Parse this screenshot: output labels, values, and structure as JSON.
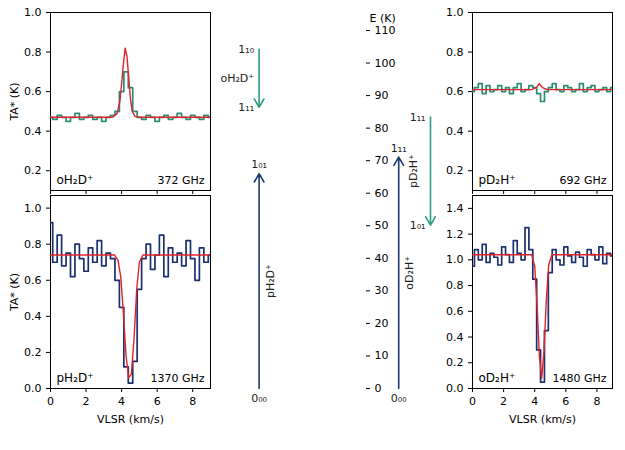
{
  "chart_data": [
    {
      "type": "line",
      "title": "oH₂D⁺",
      "subtitle": "372 GHz",
      "ylabel": "TA* (K)",
      "xlim": [
        0,
        9
      ],
      "xticks": [
        0,
        2,
        4,
        6,
        8
      ],
      "ylim": [
        0.1,
        1.0
      ],
      "yticks": [
        0.2,
        0.4,
        0.6,
        0.8,
        {
          "value": 1,
          "label": "1.0"
        }
      ],
      "tick_labels": "y",
      "series": [
        {
          "color": "#2a8c74",
          "line_style": "step",
          "x": [
            0,
            0.25,
            0.5,
            0.75,
            1,
            1.25,
            1.5,
            1.75,
            2,
            2.25,
            2.5,
            2.75,
            3,
            3.25,
            3.5,
            3.75,
            4,
            4.25,
            4.5,
            4.75,
            5,
            5.25,
            5.5,
            5.75,
            6,
            6.25,
            6.5,
            6.75,
            7,
            7.25,
            7.5,
            7.75,
            8,
            8.25,
            8.5,
            8.75,
            9
          ],
          "values": [
            0.47,
            0.46,
            0.48,
            0.47,
            0.45,
            0.47,
            0.49,
            0.46,
            0.47,
            0.48,
            0.46,
            0.47,
            0.45,
            0.47,
            0.48,
            0.5,
            0.6,
            0.7,
            0.62,
            0.5,
            0.47,
            0.46,
            0.48,
            0.47,
            0.45,
            0.47,
            0.48,
            0.46,
            0.47,
            0.49,
            0.47,
            0.46,
            0.48,
            0.47,
            0.46,
            0.48,
            0.47
          ]
        },
        {
          "color": "#e0242a",
          "line_style": "solid",
          "x": [
            0,
            3.5,
            3.75,
            3.9,
            4.0,
            4.1,
            4.2,
            4.3,
            4.4,
            4.5,
            4.6,
            4.75,
            5.0,
            9
          ],
          "values": [
            0.47,
            0.47,
            0.49,
            0.55,
            0.64,
            0.74,
            0.82,
            0.78,
            0.67,
            0.56,
            0.5,
            0.475,
            0.47,
            0.47
          ]
        }
      ]
    },
    {
      "type": "line",
      "title": "pH₂D⁺",
      "subtitle": "1370 GHz",
      "xlabel": "VLSR (km/s)",
      "ylabel": "TA* (K)",
      "xlim": [
        0,
        9
      ],
      "xticks": [
        0,
        2,
        4,
        6,
        8
      ],
      "ylim": [
        0,
        1.07
      ],
      "yticks": [
        {
          "value": 0,
          "label": "0.0"
        },
        0.2,
        0.4,
        0.6,
        0.8,
        {
          "value": 1,
          "label": "1.0"
        }
      ],
      "series": [
        {
          "color": "#1c2f6e",
          "line_style": "step",
          "x": [
            0,
            0.25,
            0.5,
            0.75,
            1,
            1.25,
            1.5,
            1.75,
            2,
            2.25,
            2.5,
            2.75,
            3,
            3.25,
            3.5,
            3.75,
            4,
            4.25,
            4.5,
            4.75,
            5,
            5.25,
            5.5,
            5.75,
            6,
            6.25,
            6.5,
            6.75,
            7,
            7.25,
            7.5,
            7.75,
            8,
            8.25,
            8.5,
            8.75,
            9
          ],
          "values": [
            0.92,
            0.7,
            0.85,
            0.68,
            0.75,
            0.62,
            0.8,
            0.72,
            0.65,
            0.78,
            0.7,
            0.82,
            0.68,
            0.75,
            0.72,
            0.6,
            0.45,
            0.12,
            0.03,
            0.15,
            0.55,
            0.72,
            0.8,
            0.66,
            0.74,
            0.85,
            0.62,
            0.78,
            0.7,
            0.75,
            0.68,
            0.82,
            0.72,
            0.6,
            0.78,
            0.7,
            0.74
          ]
        },
        {
          "color": "#e0242a",
          "line_style": "solid",
          "x": [
            0,
            3.6,
            3.8,
            3.95,
            4.1,
            4.25,
            4.4,
            4.55,
            4.7,
            4.85,
            5.0,
            5.2,
            9
          ],
          "values": [
            0.74,
            0.74,
            0.71,
            0.62,
            0.42,
            0.18,
            0.06,
            0.08,
            0.28,
            0.55,
            0.7,
            0.74,
            0.74
          ]
        }
      ]
    },
    {
      "type": "line",
      "title": "pD₂H⁺",
      "subtitle": "692 GHz",
      "xlim": [
        0,
        9
      ],
      "xticks": [
        0,
        2,
        4,
        6,
        8
      ],
      "ylim": [
        0.1,
        1.0
      ],
      "yticks": [
        0.2,
        0.4,
        0.6,
        0.8,
        {
          "value": 1,
          "label": "1.0"
        }
      ],
      "tick_labels": "y",
      "series": [
        {
          "color": "#2a8c74",
          "line_style": "step",
          "x": [
            0,
            0.25,
            0.5,
            0.75,
            1,
            1.25,
            1.5,
            1.75,
            2,
            2.25,
            2.5,
            2.75,
            3,
            3.25,
            3.5,
            3.75,
            4,
            4.25,
            4.5,
            4.75,
            5,
            5.25,
            5.5,
            5.75,
            6,
            6.25,
            6.5,
            6.75,
            7,
            7.25,
            7.5,
            7.75,
            8,
            8.25,
            8.5,
            8.75,
            9
          ],
          "values": [
            0.6,
            0.62,
            0.64,
            0.59,
            0.63,
            0.6,
            0.61,
            0.63,
            0.6,
            0.62,
            0.59,
            0.62,
            0.64,
            0.6,
            0.61,
            0.63,
            0.62,
            0.59,
            0.55,
            0.6,
            0.62,
            0.64,
            0.61,
            0.6,
            0.63,
            0.62,
            0.6,
            0.61,
            0.64,
            0.6,
            0.62,
            0.63,
            0.6,
            0.61,
            0.62,
            0.6,
            0.62
          ]
        },
        {
          "color": "#e0242a",
          "line_style": "solid",
          "x": [
            0,
            3.8,
            4.1,
            4.3,
            4.5,
            4.8,
            9
          ],
          "values": [
            0.61,
            0.61,
            0.62,
            0.64,
            0.62,
            0.61,
            0.61
          ]
        }
      ]
    },
    {
      "type": "line",
      "title": "oD₂H⁺",
      "subtitle": "1480 GHz",
      "xlabel": "VLSR (km/s)",
      "xlim": [
        0,
        9
      ],
      "xticks": [
        0,
        2,
        4,
        6,
        8
      ],
      "ylim": [
        0,
        1.5
      ],
      "yticks": [
        {
          "value": 0,
          "label": "0.0"
        },
        0.2,
        0.4,
        0.6,
        0.8,
        {
          "value": 1,
          "label": "1.0"
        },
        1.2,
        1.4
      ],
      "series": [
        {
          "color": "#1c2f6e",
          "line_style": "step",
          "x": [
            0,
            0.25,
            0.5,
            0.75,
            1,
            1.25,
            1.5,
            1.75,
            2,
            2.25,
            2.5,
            2.75,
            3,
            3.25,
            3.5,
            3.75,
            4,
            4.25,
            4.5,
            4.75,
            5,
            5.25,
            5.5,
            5.75,
            6,
            6.25,
            6.5,
            6.75,
            7,
            7.25,
            7.5,
            7.75,
            8,
            8.25,
            8.5,
            8.75,
            9
          ],
          "values": [
            0.95,
            1.08,
            1.0,
            1.12,
            0.98,
            1.05,
            1.02,
            0.96,
            1.1,
            1.04,
            0.98,
            1.15,
            1.05,
            1.0,
            1.25,
            1.08,
            0.85,
            0.3,
            0.05,
            0.45,
            0.9,
            1.08,
            1.0,
            0.96,
            1.1,
            1.03,
            0.98,
            1.06,
            1.02,
            0.95,
            1.08,
            1.04,
            1.0,
            1.1,
            0.97,
            1.05,
            1.03
          ]
        },
        {
          "color": "#e0242a",
          "line_style": "solid",
          "x": [
            0,
            3.8,
            4.0,
            4.15,
            4.3,
            4.45,
            4.6,
            4.75,
            4.9,
            5.1,
            9
          ],
          "values": [
            1.04,
            1.04,
            0.95,
            0.65,
            0.25,
            0.08,
            0.3,
            0.7,
            0.96,
            1.04,
            1.04
          ]
        }
      ]
    },
    {
      "type": "energy_levels",
      "ylabel": "E (K)",
      "ylim": [
        0,
        110
      ],
      "yticks": [
        0,
        10,
        20,
        30,
        40,
        50,
        60,
        70,
        80,
        90,
        100,
        110
      ],
      "transitions": [
        {
          "name": "oH₂D⁺",
          "color": "#2e9c86",
          "from": 104.2,
          "to": 86.4,
          "from_label": "1₁₀",
          "to_label": "1₁₁"
        },
        {
          "name": "pH₂D⁺",
          "color": "#1c3a70",
          "from": 0,
          "to": 66,
          "from_label": "0₀₀",
          "to_label": "1₀₁"
        },
        {
          "name": "pD₂H⁺",
          "color": "#2e9c86",
          "from": 83.4,
          "to": 50.2,
          "from_label": "1₁₁",
          "to_label": "1₀₁"
        },
        {
          "name": "oD₂H⁺",
          "color": "#1c3a70",
          "from": 0,
          "to": 71.1,
          "from_label": "0₀₀",
          "to_label": "1₁₁"
        }
      ]
    }
  ]
}
